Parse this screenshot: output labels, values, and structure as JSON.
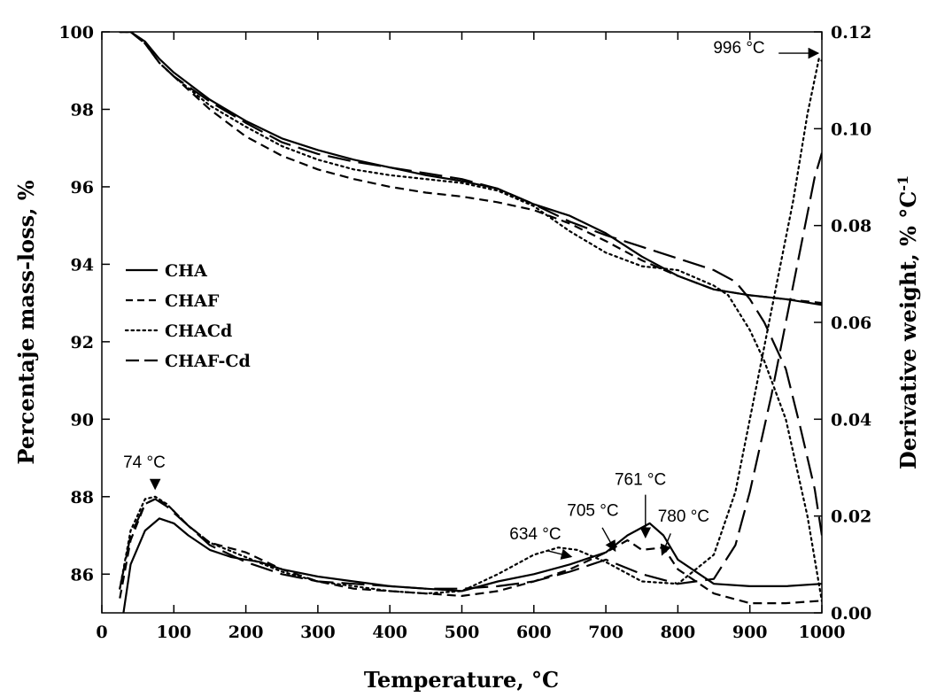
{
  "chart_data": {
    "type": "line",
    "xlabel": "Temperature, °C",
    "ylabel_left": "Percentaje mass-loss, %",
    "ylabel_right_main": "Derivative weight, % °C",
    "ylabel_right_sup": "-1",
    "xlim": [
      0,
      1000
    ],
    "ylim_left": [
      85,
      100
    ],
    "ylim_right": [
      0,
      0.12
    ],
    "x_ticks": [
      "0",
      "100",
      "200",
      "300",
      "400",
      "500",
      "600",
      "700",
      "800",
      "900",
      "1000"
    ],
    "y_left_ticks": [
      "86",
      "88",
      "90",
      "92",
      "94",
      "96",
      "98",
      "100"
    ],
    "y_right_ticks": [
      "0.00",
      "0.02",
      "0.04",
      "0.06",
      "0.08",
      "0.10",
      "0.12"
    ],
    "legend_position": "middle-left",
    "series": [
      {
        "name": "CHA",
        "style": "solid",
        "tga": [
          [
            25,
            100
          ],
          [
            40,
            100
          ],
          [
            60,
            99.75
          ],
          [
            80,
            99.3
          ],
          [
            100,
            98.95
          ],
          [
            150,
            98.25
          ],
          [
            200,
            97.7
          ],
          [
            250,
            97.25
          ],
          [
            300,
            96.95
          ],
          [
            350,
            96.7
          ],
          [
            400,
            96.5
          ],
          [
            450,
            96.3
          ],
          [
            500,
            96.15
          ],
          [
            550,
            95.95
          ],
          [
            600,
            95.55
          ],
          [
            650,
            95.25
          ],
          [
            700,
            94.8
          ],
          [
            750,
            94.2
          ],
          [
            800,
            93.7
          ],
          [
            850,
            93.35
          ],
          [
            900,
            93.2
          ],
          [
            950,
            93.1
          ],
          [
            1000,
            92.95
          ]
        ],
        "dtg": [
          [
            30,
            0.0
          ],
          [
            40,
            0.01
          ],
          [
            60,
            0.017
          ],
          [
            80,
            0.0195
          ],
          [
            100,
            0.0185
          ],
          [
            120,
            0.016
          ],
          [
            150,
            0.013
          ],
          [
            180,
            0.0115
          ],
          [
            200,
            0.011
          ],
          [
            220,
            0.0105
          ],
          [
            250,
            0.009
          ],
          [
            300,
            0.0075
          ],
          [
            350,
            0.0065
          ],
          [
            400,
            0.0055
          ],
          [
            450,
            0.005
          ],
          [
            500,
            0.0045
          ],
          [
            550,
            0.0065
          ],
          [
            600,
            0.008
          ],
          [
            650,
            0.01
          ],
          [
            700,
            0.0125
          ],
          [
            730,
            0.016
          ],
          [
            761,
            0.0185
          ],
          [
            780,
            0.016
          ],
          [
            800,
            0.011
          ],
          [
            850,
            0.006
          ],
          [
            900,
            0.0055
          ],
          [
            950,
            0.0055
          ],
          [
            1000,
            0.006
          ]
        ]
      },
      {
        "name": "CHAF",
        "style": "dashed",
        "tga": [
          [
            25,
            100
          ],
          [
            40,
            100
          ],
          [
            60,
            99.7
          ],
          [
            80,
            99.2
          ],
          [
            100,
            98.85
          ],
          [
            150,
            98.0
          ],
          [
            200,
            97.3
          ],
          [
            250,
            96.8
          ],
          [
            300,
            96.45
          ],
          [
            350,
            96.2
          ],
          [
            400,
            96.0
          ],
          [
            450,
            95.85
          ],
          [
            500,
            95.75
          ],
          [
            550,
            95.6
          ],
          [
            600,
            95.4
          ],
          [
            650,
            95.05
          ],
          [
            700,
            94.6
          ],
          [
            750,
            94.1
          ],
          [
            800,
            93.7
          ],
          [
            850,
            93.35
          ],
          [
            900,
            93.2
          ],
          [
            950,
            93.1
          ],
          [
            1000,
            93.0
          ]
        ],
        "dtg": [
          [
            25,
            0.003
          ],
          [
            40,
            0.015
          ],
          [
            60,
            0.0225
          ],
          [
            74,
            0.0235
          ],
          [
            90,
            0.0225
          ],
          [
            120,
            0.018
          ],
          [
            150,
            0.0145
          ],
          [
            200,
            0.0125
          ],
          [
            250,
            0.009
          ],
          [
            300,
            0.0065
          ],
          [
            350,
            0.005
          ],
          [
            400,
            0.0045
          ],
          [
            450,
            0.004
          ],
          [
            500,
            0.0035
          ],
          [
            550,
            0.0045
          ],
          [
            600,
            0.0065
          ],
          [
            650,
            0.009
          ],
          [
            700,
            0.0125
          ],
          [
            730,
            0.015
          ],
          [
            750,
            0.013
          ],
          [
            780,
            0.0135
          ],
          [
            800,
            0.009
          ],
          [
            850,
            0.004
          ],
          [
            900,
            0.002
          ],
          [
            950,
            0.002
          ],
          [
            1000,
            0.0025
          ]
        ]
      },
      {
        "name": "CHACd",
        "style": "dotted",
        "tga": [
          [
            25,
            100
          ],
          [
            40,
            100
          ],
          [
            60,
            99.7
          ],
          [
            80,
            99.2
          ],
          [
            100,
            98.85
          ],
          [
            150,
            98.1
          ],
          [
            200,
            97.55
          ],
          [
            250,
            97.05
          ],
          [
            300,
            96.7
          ],
          [
            350,
            96.45
          ],
          [
            400,
            96.3
          ],
          [
            450,
            96.2
          ],
          [
            500,
            96.1
          ],
          [
            550,
            95.9
          ],
          [
            600,
            95.5
          ],
          [
            650,
            94.85
          ],
          [
            700,
            94.3
          ],
          [
            750,
            93.95
          ],
          [
            800,
            93.85
          ],
          [
            850,
            93.45
          ],
          [
            870,
            93.2
          ],
          [
            900,
            92.3
          ],
          [
            920,
            91.5
          ],
          [
            950,
            90.0
          ],
          [
            980,
            87.5
          ],
          [
            1000,
            85.3
          ]
        ],
        "dtg": [
          [
            25,
            0.005
          ],
          [
            40,
            0.017
          ],
          [
            60,
            0.0235
          ],
          [
            74,
            0.024
          ],
          [
            90,
            0.0225
          ],
          [
            120,
            0.018
          ],
          [
            150,
            0.0145
          ],
          [
            200,
            0.0115
          ],
          [
            250,
            0.0085
          ],
          [
            300,
            0.0065
          ],
          [
            350,
            0.0055
          ],
          [
            400,
            0.0045
          ],
          [
            450,
            0.004
          ],
          [
            500,
            0.0045
          ],
          [
            550,
            0.008
          ],
          [
            600,
            0.012
          ],
          [
            634,
            0.0135
          ],
          [
            660,
            0.013
          ],
          [
            700,
            0.0105
          ],
          [
            750,
            0.0065
          ],
          [
            800,
            0.006
          ],
          [
            850,
            0.012
          ],
          [
            880,
            0.025
          ],
          [
            900,
            0.04
          ],
          [
            920,
            0.055
          ],
          [
            940,
            0.07
          ],
          [
            960,
            0.085
          ],
          [
            980,
            0.103
          ],
          [
            996,
            0.1145
          ],
          [
            1000,
            0.114
          ]
        ]
      },
      {
        "name": "CHAF-Cd",
        "style": "longdash",
        "tga": [
          [
            25,
            100
          ],
          [
            40,
            100
          ],
          [
            60,
            99.7
          ],
          [
            80,
            99.2
          ],
          [
            100,
            98.85
          ],
          [
            150,
            98.2
          ],
          [
            200,
            97.65
          ],
          [
            250,
            97.15
          ],
          [
            300,
            96.85
          ],
          [
            350,
            96.65
          ],
          [
            400,
            96.5
          ],
          [
            450,
            96.35
          ],
          [
            500,
            96.2
          ],
          [
            550,
            95.95
          ],
          [
            600,
            95.55
          ],
          [
            650,
            95.1
          ],
          [
            700,
            94.75
          ],
          [
            750,
            94.45
          ],
          [
            800,
            94.15
          ],
          [
            850,
            93.85
          ],
          [
            880,
            93.55
          ],
          [
            900,
            93.1
          ],
          [
            920,
            92.5
          ],
          [
            950,
            91.3
          ],
          [
            970,
            89.8
          ],
          [
            990,
            88.2
          ],
          [
            1000,
            87.0
          ]
        ],
        "dtg": [
          [
            25,
            0.005
          ],
          [
            40,
            0.016
          ],
          [
            60,
            0.0225
          ],
          [
            74,
            0.0235
          ],
          [
            90,
            0.022
          ],
          [
            120,
            0.018
          ],
          [
            150,
            0.014
          ],
          [
            200,
            0.0105
          ],
          [
            250,
            0.008
          ],
          [
            300,
            0.0065
          ],
          [
            350,
            0.006
          ],
          [
            400,
            0.0055
          ],
          [
            450,
            0.005
          ],
          [
            500,
            0.005
          ],
          [
            550,
            0.0055
          ],
          [
            600,
            0.0065
          ],
          [
            650,
            0.0085
          ],
          [
            700,
            0.011
          ],
          [
            750,
            0.008
          ],
          [
            800,
            0.006
          ],
          [
            850,
            0.007
          ],
          [
            880,
            0.014
          ],
          [
            900,
            0.025
          ],
          [
            930,
            0.045
          ],
          [
            950,
            0.06
          ],
          [
            970,
            0.075
          ],
          [
            990,
            0.09
          ],
          [
            1000,
            0.095
          ]
        ]
      }
    ],
    "annotations": [
      {
        "label": "74 °C",
        "text_x": 59,
        "text_y": 88.75,
        "arrow_from": [
          74,
          88.45
        ],
        "arrow_to": [
          74,
          88.2
        ]
      },
      {
        "label": "634 °C",
        "text_x": 602,
        "text_y": 86.9,
        "arrow_from": [
          620,
          86.6
        ],
        "arrow_to": [
          652,
          86.45
        ]
      },
      {
        "label": "705 °C",
        "text_x": 682,
        "text_y": 87.5,
        "arrow_from": [
          695,
          87.2
        ],
        "arrow_to": [
          713,
          86.6
        ]
      },
      {
        "label": "761 °C",
        "text_x": 748,
        "text_y": 88.3,
        "arrow_from": [
          755,
          88.05
        ],
        "arrow_to": [
          755,
          86.95
        ]
      },
      {
        "label": "780 °C",
        "text_x": 808,
        "text_y": 87.35,
        "arrow_from": [
          790,
          87.05
        ],
        "arrow_to": [
          778,
          86.5
        ]
      },
      {
        "label": "996 °C",
        "text_x": 885,
        "text_y": 99.45,
        "arrow_from": [
          940,
          99.45
        ],
        "arrow_to": [
          995,
          99.45
        ]
      }
    ]
  }
}
